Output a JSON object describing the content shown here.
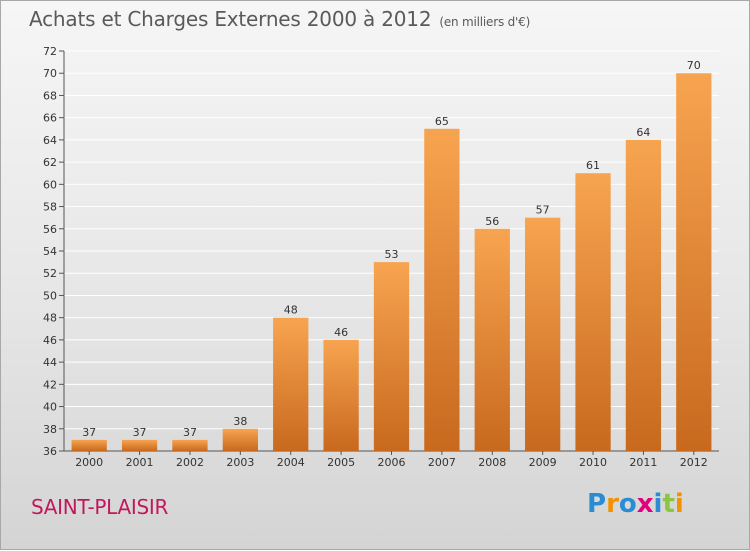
{
  "title": "Achats et Charges Externes 2000 à 2012",
  "subtitle": "(en milliers d'€)",
  "location": "SAINT-PLAISIR",
  "logo": {
    "letters": [
      "P",
      "r",
      "o",
      "x",
      "i",
      "t",
      "i"
    ],
    "colors": [
      "#2a8dd4",
      "#f39200",
      "#2a8dd4",
      "#e4007d",
      "#2a8dd4",
      "#8cc63f",
      "#f39200"
    ]
  },
  "colors": {
    "bar_top": "#f7a450",
    "bar_bottom": "#c8691e",
    "label": "#333333",
    "grid": "#ffffff"
  },
  "chart_data": {
    "type": "bar",
    "categories": [
      "2000",
      "2001",
      "2002",
      "2003",
      "2004",
      "2005",
      "2006",
      "2007",
      "2008",
      "2009",
      "2010",
      "2011",
      "2012"
    ],
    "values": [
      37,
      37,
      37,
      38,
      48,
      46,
      53,
      65,
      56,
      57,
      61,
      64,
      70
    ],
    "ylim": [
      36,
      72
    ],
    "yticks": [
      36,
      38,
      40,
      42,
      44,
      46,
      48,
      50,
      52,
      54,
      56,
      58,
      60,
      62,
      64,
      66,
      68,
      70,
      72
    ],
    "grid": true
  }
}
